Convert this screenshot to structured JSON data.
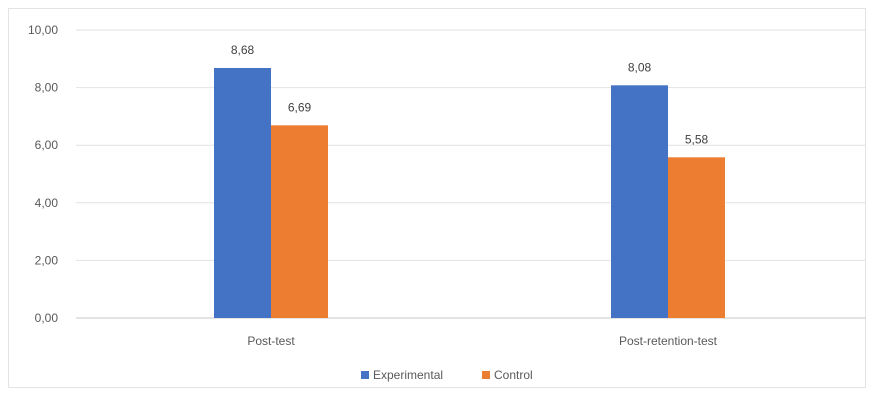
{
  "chart_data": {
    "type": "bar",
    "categories": [
      "Post-test",
      "Post-retention-test"
    ],
    "series": [
      {
        "name": "Experimental",
        "values": [
          8.68,
          8.08
        ],
        "labels": [
          "8,68",
          "8,08"
        ],
        "color": "#4472c4"
      },
      {
        "name": "Control",
        "values": [
          6.69,
          5.58
        ],
        "labels": [
          "6,69",
          "5,58"
        ],
        "color": "#ed7d31"
      }
    ],
    "ylim": [
      0,
      10
    ],
    "yticks": [
      0,
      2,
      4,
      6,
      8,
      10
    ],
    "ytick_labels": [
      "0,00",
      "2,00",
      "4,00",
      "6,00",
      "8,00",
      "10,00"
    ],
    "grid": true,
    "legend_position": "bottom"
  }
}
